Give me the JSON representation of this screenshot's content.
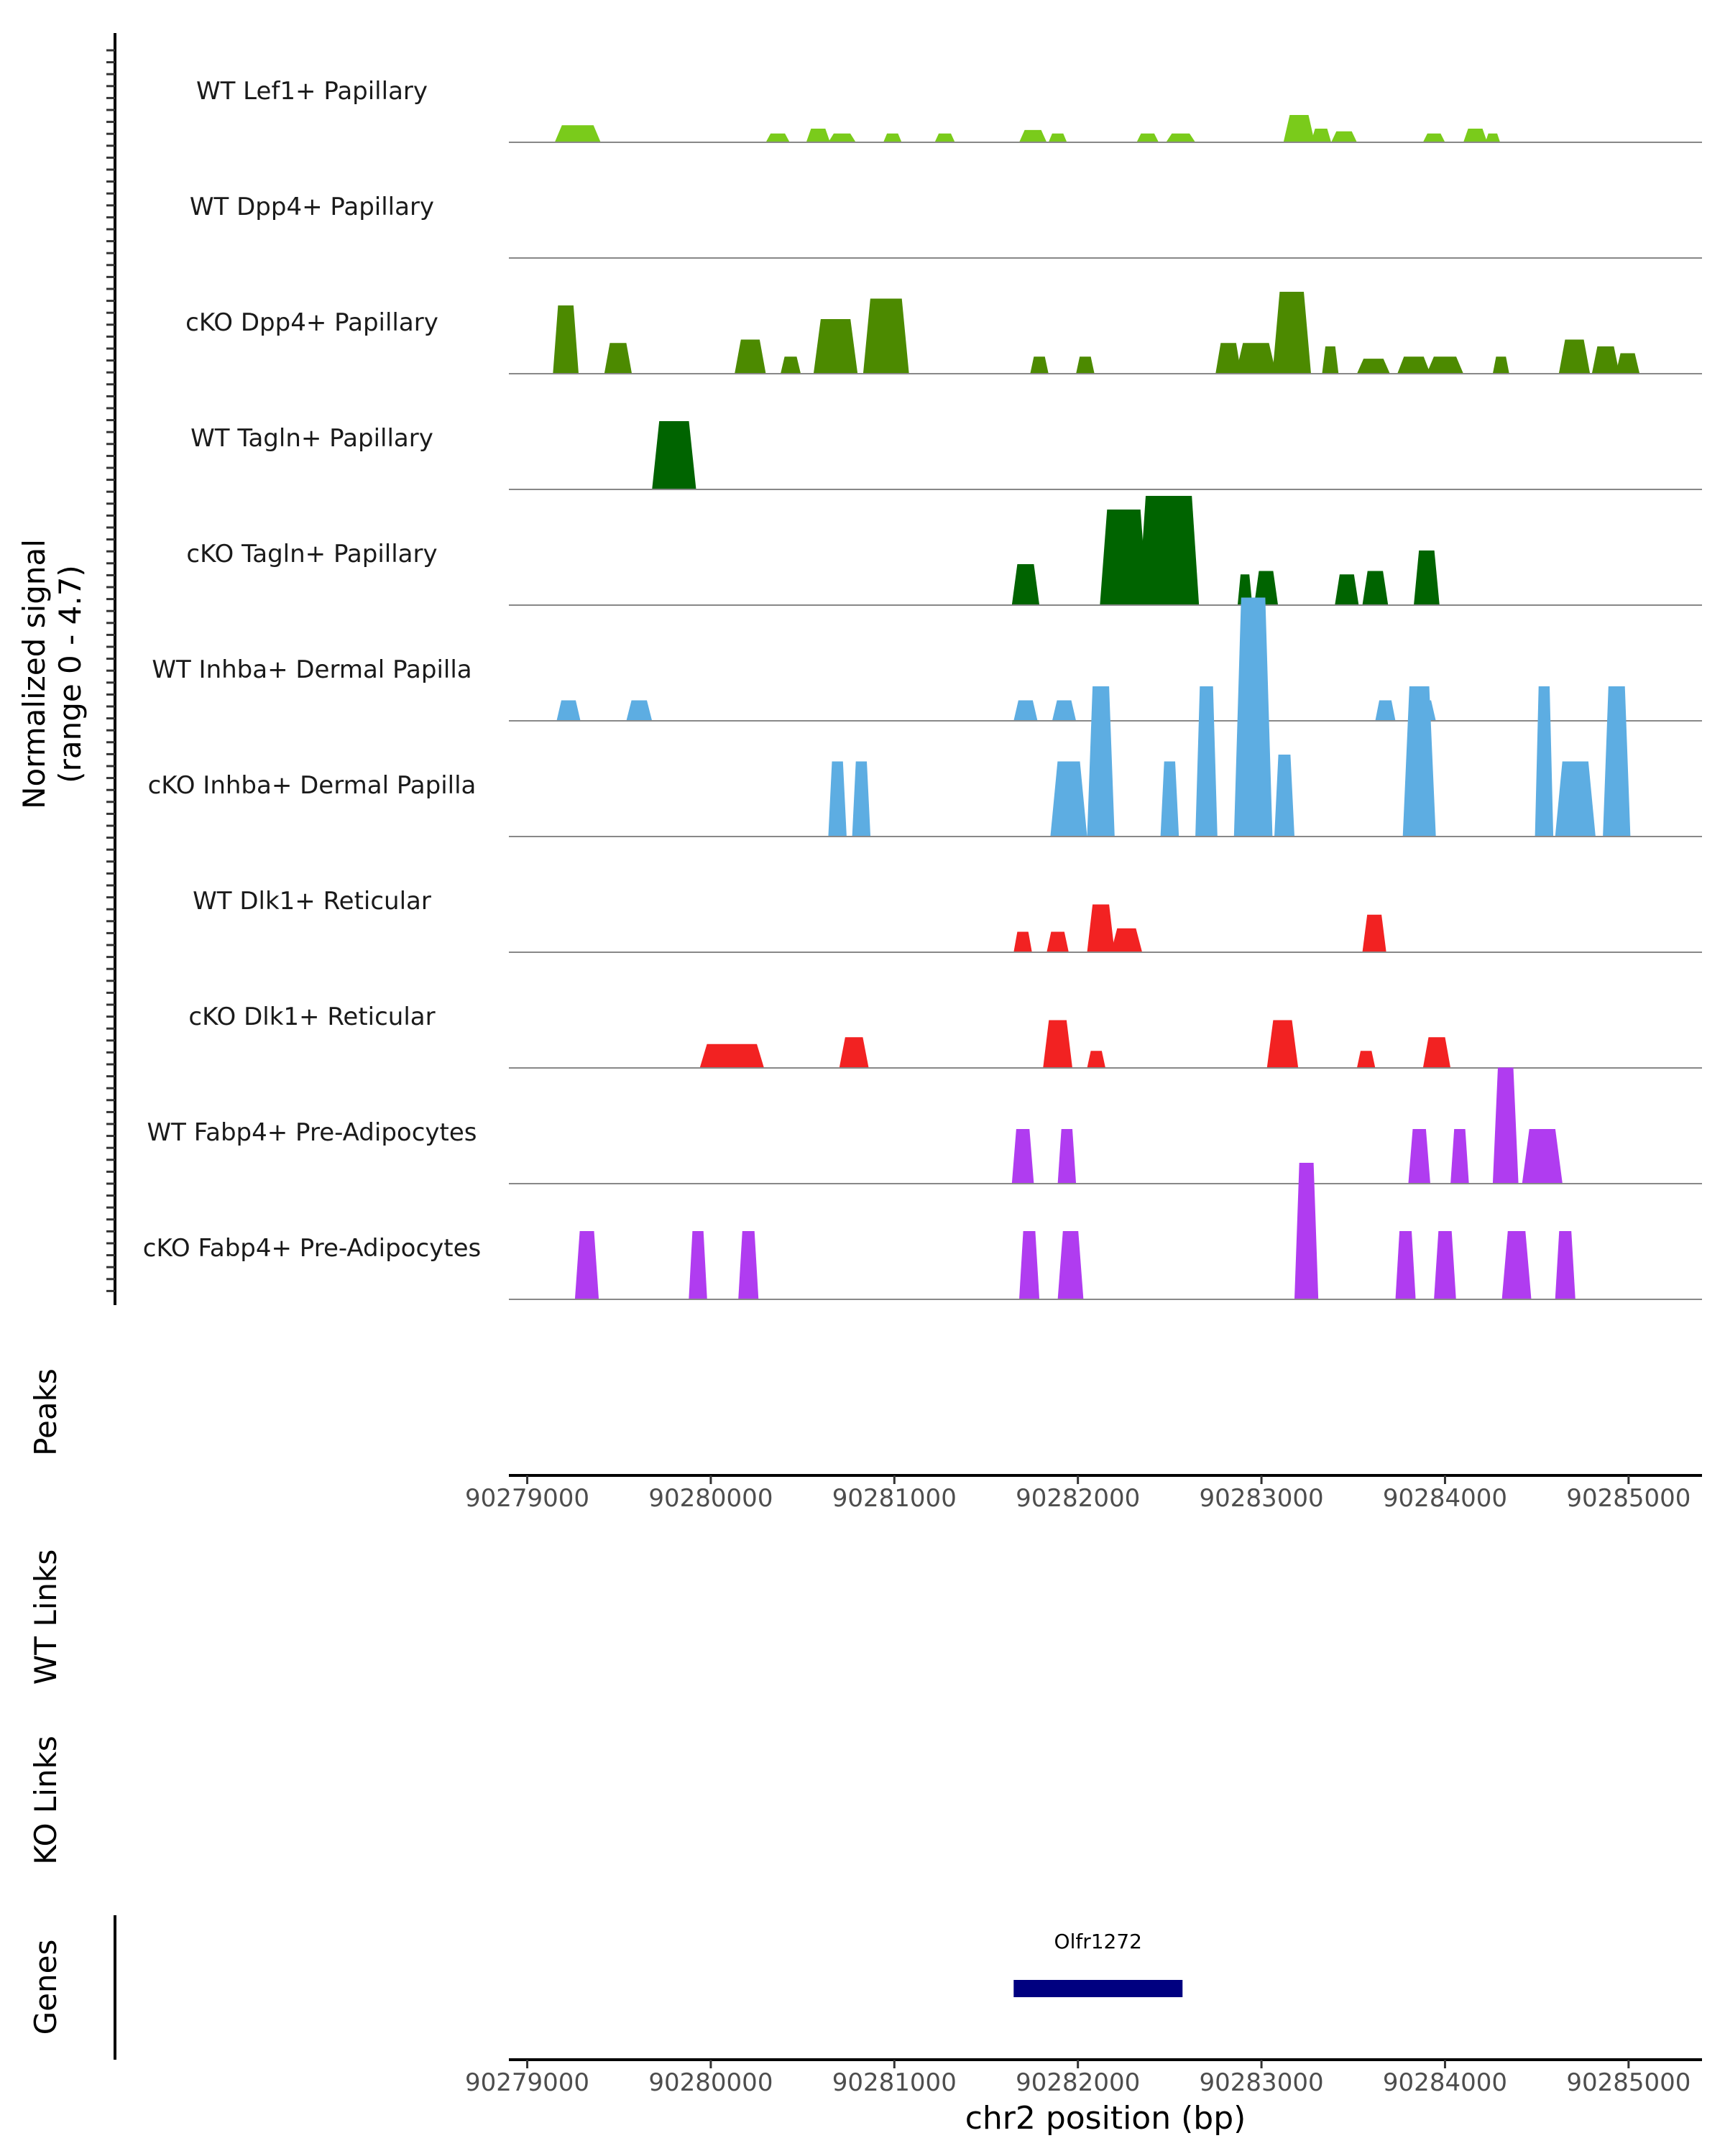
{
  "chart_data": {
    "type": "area",
    "title": "",
    "xlabel": "chr2 position (bp)",
    "x_range": [
      90278900,
      90285400
    ],
    "x_ticks": [
      "90279000",
      "90280000",
      "90281000",
      "90282000",
      "90283000",
      "90284000",
      "90285000"
    ],
    "signal_axis_label": [
      "Normalized signal",
      "(range 0 - 4.7)"
    ],
    "signal_range": [
      0,
      4.7
    ],
    "panel_labels": {
      "peaks": "Peaks",
      "wt_links": "WT Links",
      "ko_links": "KO Links",
      "genes": "Genes"
    },
    "tracks": [
      {
        "name": "WT Lef1+ Papillary",
        "color": "#7ACB1B",
        "peaks": [
          [
            90279150,
            90279400,
            0.25
          ],
          [
            90280300,
            90280430,
            0.13
          ],
          [
            90280520,
            90280650,
            0.2
          ],
          [
            90280640,
            90280790,
            0.13
          ],
          [
            90280940,
            90281040,
            0.13
          ],
          [
            90281220,
            90281330,
            0.13
          ],
          [
            90281680,
            90281830,
            0.18
          ],
          [
            90281840,
            90281940,
            0.13
          ],
          [
            90282320,
            90282440,
            0.13
          ],
          [
            90282480,
            90282640,
            0.13
          ],
          [
            90283120,
            90283290,
            0.4
          ],
          [
            90283270,
            90283380,
            0.2
          ],
          [
            90283380,
            90283520,
            0.16
          ],
          [
            90283880,
            90284000,
            0.13
          ],
          [
            90284100,
            90284230,
            0.2
          ],
          [
            90284220,
            90284300,
            0.13
          ]
        ]
      },
      {
        "name": "WT Dpp4+ Papillary",
        "color": "#5A9A0E",
        "peaks": []
      },
      {
        "name": "cKO Dpp4+ Papillary",
        "color": "#4C8A00",
        "peaks": [
          [
            90279140,
            90279280,
            1.0
          ],
          [
            90279420,
            90279570,
            0.45
          ],
          [
            90280130,
            90280300,
            0.5
          ],
          [
            90280380,
            90280490,
            0.25
          ],
          [
            90280560,
            90280800,
            0.8
          ],
          [
            90280830,
            90281080,
            1.1
          ],
          [
            90281740,
            90281840,
            0.25
          ],
          [
            90281990,
            90282090,
            0.25
          ],
          [
            90282750,
            90282890,
            0.45
          ],
          [
            90282860,
            90283080,
            0.45
          ],
          [
            90283060,
            90283270,
            1.2
          ],
          [
            90283330,
            90283420,
            0.4
          ],
          [
            90283520,
            90283700,
            0.22
          ],
          [
            90283740,
            90283920,
            0.25
          ],
          [
            90283900,
            90284100,
            0.25
          ],
          [
            90284260,
            90284350,
            0.25
          ],
          [
            90284620,
            90284790,
            0.5
          ],
          [
            90284800,
            90284950,
            0.4
          ],
          [
            90284930,
            90285060,
            0.3
          ]
        ]
      },
      {
        "name": "WT Tagln+ Papillary",
        "color": "#006400",
        "peaks": [
          [
            90279680,
            90279920,
            1.0
          ]
        ]
      },
      {
        "name": "cKO Tagln+ Papillary",
        "color": "#006400",
        "peaks": [
          [
            90281640,
            90281790,
            0.6
          ],
          [
            90282120,
            90282380,
            1.4
          ],
          [
            90282330,
            90282660,
            1.6
          ],
          [
            90282870,
            90282950,
            0.45
          ],
          [
            90282960,
            90283090,
            0.5
          ],
          [
            90283400,
            90283530,
            0.45
          ],
          [
            90283550,
            90283690,
            0.5
          ],
          [
            90283830,
            90283970,
            0.8
          ]
        ]
      },
      {
        "name": "WT Inhba+ Dermal Papilla",
        "color": "#5DADE2",
        "peaks": [
          [
            90279160,
            90279290,
            0.3
          ],
          [
            90279540,
            90279680,
            0.3
          ],
          [
            90281650,
            90281780,
            0.3
          ],
          [
            90281860,
            90281990,
            0.3
          ],
          [
            90283620,
            90283730,
            0.3
          ],
          [
            90283820,
            90283950,
            0.3
          ]
        ]
      },
      {
        "name": "cKO Inhba+ Dermal Papilla",
        "color": "#5DADE2",
        "peaks": [
          [
            90280640,
            90280740,
            1.1
          ],
          [
            90280770,
            90280870,
            1.1
          ],
          [
            90281850,
            90282050,
            1.1
          ],
          [
            90282050,
            90282200,
            2.2
          ],
          [
            90282450,
            90282550,
            1.1
          ],
          [
            90282640,
            90282760,
            2.2
          ],
          [
            90282850,
            90283060,
            3.5
          ],
          [
            90283070,
            90283180,
            1.2
          ],
          [
            90283770,
            90283950,
            2.2
          ],
          [
            90284490,
            90284590,
            2.2
          ],
          [
            90284600,
            90284820,
            1.1
          ],
          [
            90284860,
            90285010,
            2.2
          ]
        ]
      },
      {
        "name": "WT Dlk1+ Reticular",
        "color": "#F22222",
        "peaks": [
          [
            90281650,
            90281750,
            0.3
          ],
          [
            90281830,
            90281950,
            0.3
          ],
          [
            90282050,
            90282200,
            0.7
          ],
          [
            90282180,
            90282350,
            0.35
          ],
          [
            90283550,
            90283680,
            0.55
          ]
        ]
      },
      {
        "name": "cKO Dlk1+ Reticular",
        "color": "#F22222",
        "peaks": [
          [
            90279940,
            90280290,
            0.35
          ],
          [
            90280700,
            90280860,
            0.45
          ],
          [
            90281810,
            90281970,
            0.7
          ],
          [
            90282050,
            90282150,
            0.25
          ],
          [
            90283030,
            90283200,
            0.7
          ],
          [
            90283520,
            90283620,
            0.25
          ],
          [
            90283880,
            90284030,
            0.45
          ]
        ]
      },
      {
        "name": "WT Fabp4+ Pre-Adipocytes",
        "color": "#B03CF0",
        "peaks": [
          [
            90281640,
            90281760,
            0.8
          ],
          [
            90281890,
            90281990,
            0.8
          ],
          [
            90283800,
            90283920,
            0.8
          ],
          [
            90284030,
            90284130,
            0.8
          ],
          [
            90284260,
            90284400,
            1.7
          ],
          [
            90284420,
            90284640,
            0.8
          ]
        ]
      },
      {
        "name": "cKO Fabp4+ Pre-Adipocytes",
        "color": "#B03CF0",
        "peaks": [
          [
            90279260,
            90279390,
            1.0
          ],
          [
            90279880,
            90279980,
            1.0
          ],
          [
            90280150,
            90280260,
            1.0
          ],
          [
            90281680,
            90281790,
            1.0
          ],
          [
            90281890,
            90282030,
            1.0
          ],
          [
            90283180,
            90283310,
            2.0
          ],
          [
            90283730,
            90283840,
            1.0
          ],
          [
            90283940,
            90284060,
            1.0
          ],
          [
            90284310,
            90284470,
            1.0
          ],
          [
            90284600,
            90284710,
            1.0
          ]
        ]
      }
    ],
    "genes": [
      {
        "name": "Olfr1272",
        "start": 90281650,
        "end": 90282570,
        "color": "#000080"
      }
    ]
  }
}
